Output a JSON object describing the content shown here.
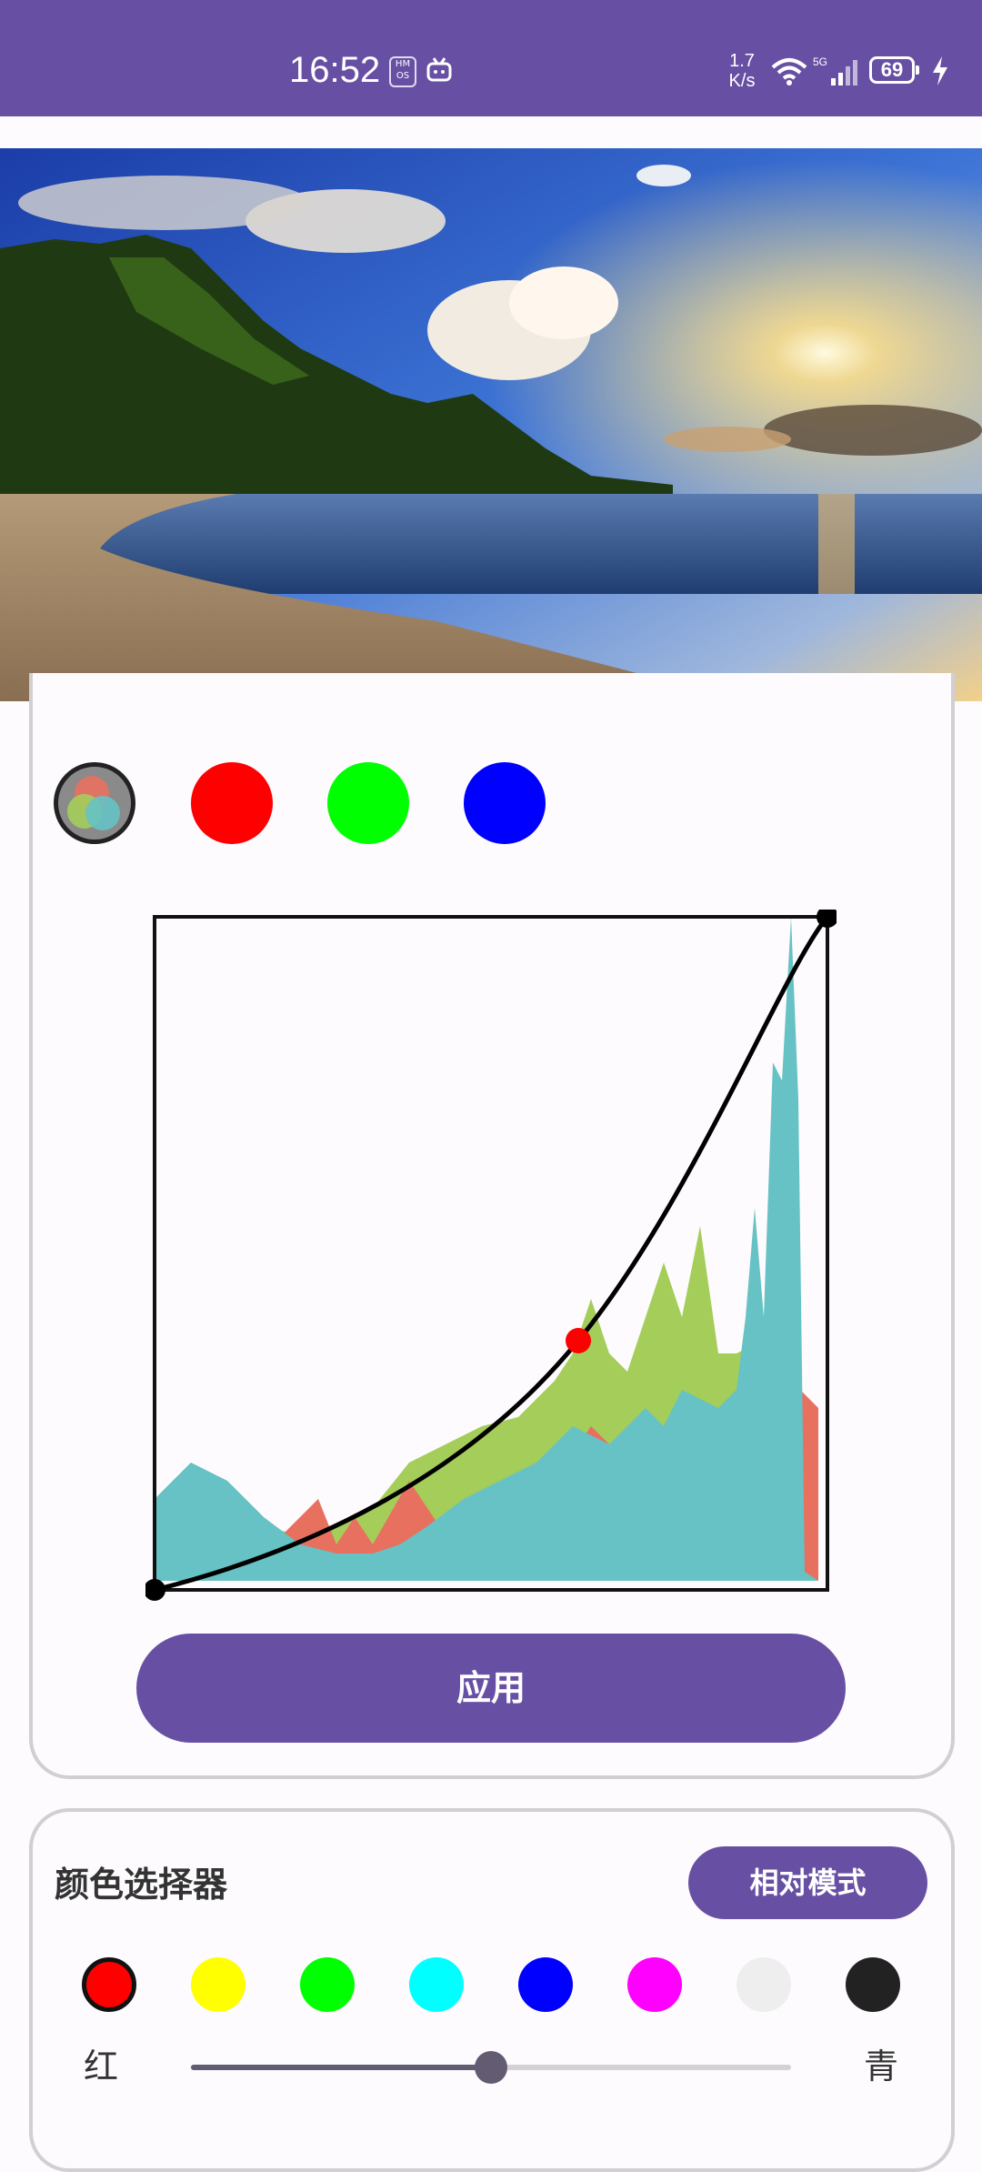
{
  "status_bar": {
    "time": "16:52",
    "hmos_badge": "HM OS",
    "net_speed_value": "1.7",
    "net_speed_unit": "K/s",
    "battery": "69"
  },
  "channels": [
    {
      "name": "all",
      "color": "#8a8a8a",
      "selected": true
    },
    {
      "name": "red",
      "color": "#ff0000"
    },
    {
      "name": "green",
      "color": "#00ff00"
    },
    {
      "name": "blue",
      "color": "#0000ff"
    }
  ],
  "curve": {
    "points": [
      [
        0,
        0
      ],
      [
        0.63,
        0.37
      ],
      [
        1,
        1
      ]
    ],
    "active_point": 1,
    "active_color": "#ff0000",
    "histogram_colors": {
      "red": "#e8705f",
      "green": "#a5cd5a",
      "blue": "#66c2c4"
    }
  },
  "apply_button": {
    "label": "应用"
  },
  "picker": {
    "title": "颜色选择器",
    "mode_label": "相对模式",
    "swatches": [
      {
        "color": "#ff0000",
        "selected": true
      },
      {
        "color": "#ffff00"
      },
      {
        "color": "#00ff00"
      },
      {
        "color": "#00ffff"
      },
      {
        "color": "#0000ff"
      },
      {
        "color": "#ff00ff"
      },
      {
        "color": "#eeeeee"
      },
      {
        "color": "#222222"
      }
    ],
    "slider": {
      "left_label": "红",
      "right_label": "青",
      "value": 0.5
    }
  },
  "accent_color": "#6750a4"
}
